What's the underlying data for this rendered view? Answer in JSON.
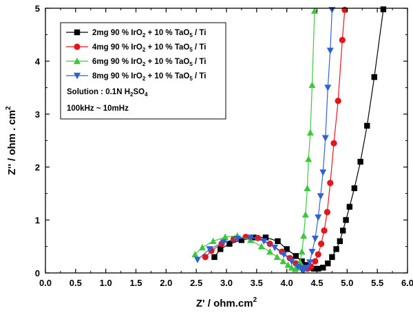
{
  "chart_data": {
    "type": "scatter",
    "xlabel_main": "Z' / ohm.cm",
    "xlabel_sup": "2",
    "ylabel_main": "Z'' / ohm . cm",
    "ylabel_sup": "2",
    "xlim": [
      0.0,
      6.0
    ],
    "ylim": [
      0,
      5
    ],
    "xticks": [
      "0.0",
      "0.5",
      "1.0",
      "1.5",
      "2.0",
      "2.5",
      "3.0",
      "3.5",
      "4.0",
      "4.5",
      "5.0",
      "5.5",
      "6.0"
    ],
    "yticks": [
      "0",
      "1",
      "2",
      "3",
      "4",
      "5"
    ],
    "legend_position": "top-left",
    "series": [
      {
        "label_pre": "2mg 90 % IrO",
        "label_mid": " + 10 % TaO",
        "label_post": " / Ti",
        "color": "#000000",
        "marker": "square",
        "x": [
          2.8,
          2.9,
          3.05,
          3.25,
          3.45,
          3.65,
          3.85,
          4.0,
          4.15,
          4.25,
          4.32,
          4.38,
          4.45,
          4.52,
          4.6,
          4.68,
          4.75,
          4.82,
          4.88,
          4.93,
          4.98,
          5.04,
          5.12,
          5.22,
          5.33,
          5.45,
          5.6
        ],
        "y": [
          0.3,
          0.45,
          0.55,
          0.62,
          0.67,
          0.67,
          0.6,
          0.45,
          0.32,
          0.22,
          0.15,
          0.1,
          0.08,
          0.08,
          0.1,
          0.18,
          0.3,
          0.45,
          0.6,
          0.8,
          1.0,
          1.25,
          1.6,
          2.1,
          2.78,
          3.7,
          4.98
        ]
      },
      {
        "label_pre": "4mg 90 % IrO",
        "label_mid": " + 10 % TaO",
        "label_post": " / Ti",
        "color": "#e8141a",
        "marker": "circle",
        "x": [
          2.65,
          2.75,
          2.92,
          3.12,
          3.32,
          3.52,
          3.72,
          3.92,
          4.05,
          4.15,
          4.22,
          4.28,
          4.34,
          4.4,
          4.47,
          4.52,
          4.57,
          4.62,
          4.67,
          4.72,
          4.78,
          4.85,
          4.92,
          4.96
        ],
        "y": [
          0.3,
          0.42,
          0.55,
          0.64,
          0.68,
          0.66,
          0.55,
          0.4,
          0.28,
          0.18,
          0.12,
          0.08,
          0.08,
          0.12,
          0.22,
          0.35,
          0.55,
          0.8,
          1.15,
          1.7,
          2.45,
          3.25,
          4.4,
          4.97
        ]
      },
      {
        "label_pre": "6mg 90 % IrO",
        "label_mid": " + 10 % TaO",
        "label_post": " / Ti",
        "color": "#3cc83c",
        "marker": "triangle-up",
        "x": [
          2.48,
          2.6,
          2.78,
          2.98,
          3.18,
          3.4,
          3.58,
          3.72,
          3.84,
          3.94,
          4.02,
          4.08,
          4.14,
          4.18,
          4.22,
          4.25,
          4.28,
          4.31,
          4.34,
          4.36,
          4.39,
          4.42,
          4.46
        ],
        "y": [
          0.35,
          0.48,
          0.6,
          0.68,
          0.7,
          0.62,
          0.5,
          0.4,
          0.3,
          0.22,
          0.15,
          0.1,
          0.07,
          0.1,
          0.2,
          0.4,
          0.7,
          1.1,
          1.6,
          2.15,
          2.65,
          3.55,
          4.95
        ]
      },
      {
        "label_pre": "8mg 90 % IrO",
        "label_mid": " + 10 % TaO",
        "label_post": " / Ti",
        "color": "#3060d8",
        "marker": "triangle-down",
        "x": [
          2.52,
          2.72,
          2.95,
          3.18,
          3.4,
          3.62,
          3.8,
          3.95,
          4.08,
          4.18,
          4.24,
          4.28,
          4.33,
          4.38,
          4.42,
          4.47,
          4.52,
          4.56,
          4.6,
          4.64,
          4.68,
          4.72,
          4.75
        ],
        "y": [
          0.25,
          0.45,
          0.58,
          0.65,
          0.67,
          0.6,
          0.48,
          0.35,
          0.22,
          0.12,
          0.08,
          0.05,
          0.1,
          0.2,
          0.4,
          0.65,
          1.05,
          1.45,
          1.9,
          2.55,
          3.5,
          4.2,
          4.97
        ]
      }
    ],
    "notes": [
      {
        "pre": "Solution : 0.1N H",
        "sub": "2",
        "post": "SO",
        "sub2": "4"
      },
      {
        "pre": "100kHz ~ 10mHz",
        "sub": "",
        "post": "",
        "sub2": ""
      }
    ]
  }
}
